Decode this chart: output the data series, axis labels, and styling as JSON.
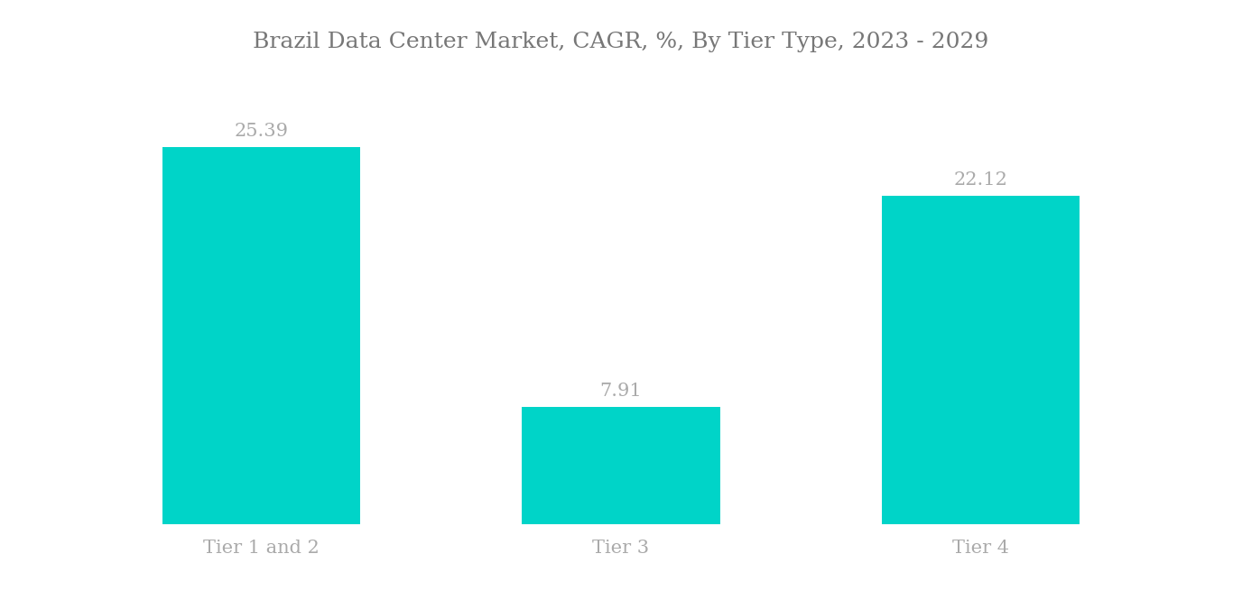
{
  "title": "Brazil Data Center Market, CAGR, %, By Tier Type, 2023 - 2029",
  "categories": [
    "Tier 1 and 2",
    "Tier 3",
    "Tier 4"
  ],
  "values": [
    25.39,
    7.91,
    22.12
  ],
  "bar_color": "#00D4C8",
  "bar_width": 0.55,
  "label_color": "#aaaaaa",
  "title_color": "#777777",
  "title_fontsize": 18,
  "label_fontsize": 15,
  "value_fontsize": 15,
  "background_color": "#ffffff",
  "ylim": [
    0,
    30
  ],
  "figsize": [
    13.76,
    6.65
  ],
  "dpi": 100
}
